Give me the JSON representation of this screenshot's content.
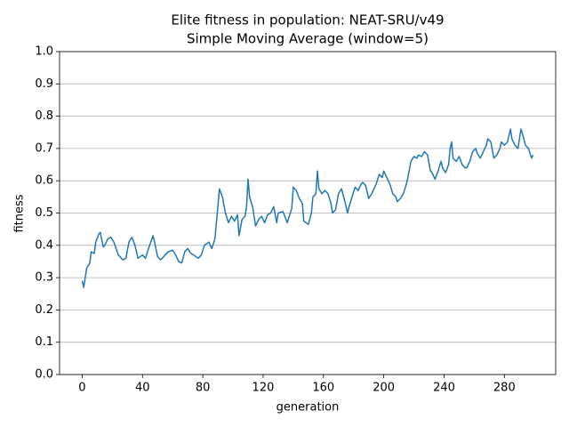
{
  "chart_data": {
    "type": "line",
    "title": "Elite fitness in population: NEAT-SRU/v49",
    "subtitle": "Simple Moving Average (window=5)",
    "x_label": "generation",
    "y_label": "fitness",
    "xlim": [
      -15,
      314
    ],
    "ylim": [
      0,
      1
    ],
    "xticks": [
      0,
      40,
      80,
      120,
      160,
      200,
      240,
      280
    ],
    "yticks": [
      {
        "value": 0,
        "label": "0.0"
      },
      0.1,
      0.2,
      0.3,
      0.4,
      0.5,
      0.6,
      0.7,
      0.8,
      0.9,
      {
        "value": 1,
        "label": "1.0"
      }
    ],
    "grid": "y",
    "x": [
      0,
      1,
      3,
      5,
      6,
      8,
      9,
      11,
      12,
      14,
      15,
      17,
      19,
      21,
      24,
      27,
      29,
      31,
      33,
      35,
      37,
      40,
      42,
      44,
      47,
      48,
      50,
      52,
      55,
      57,
      60,
      62,
      64,
      66,
      68,
      70,
      72,
      74,
      77,
      79,
      81,
      84,
      86,
      88,
      90,
      91,
      93,
      95,
      97,
      99,
      101,
      103,
      104,
      106,
      108,
      109,
      110,
      111,
      113,
      115,
      117,
      119,
      121,
      123,
      125,
      127,
      129,
      130,
      133,
      134,
      136,
      139,
      140,
      142,
      144,
      146,
      147,
      150,
      152,
      153,
      155,
      156,
      157,
      159,
      161,
      163,
      165,
      166,
      168,
      170,
      172,
      174,
      176,
      177,
      179,
      181,
      183,
      185,
      186,
      188,
      190,
      192,
      193,
      195,
      197,
      199,
      200,
      202,
      204,
      206,
      208,
      209,
      211,
      213,
      215,
      216,
      218,
      220,
      222,
      223,
      225,
      227,
      229,
      231,
      232,
      234,
      236,
      238,
      239,
      241,
      243,
      244,
      245,
      246,
      248,
      250,
      252,
      254,
      255,
      257,
      259,
      261,
      262,
      264,
      266,
      268,
      269,
      271,
      273,
      275,
      277,
      278,
      280,
      282,
      284,
      285,
      287,
      289,
      291,
      292,
      294,
      296,
      298,
      299
    ],
    "series": [
      {
        "name": "fitness",
        "color": "#1f77b4",
        "values": [
          0.29,
          0.27,
          0.33,
          0.345,
          0.38,
          0.375,
          0.41,
          0.435,
          0.44,
          0.395,
          0.4,
          0.42,
          0.425,
          0.41,
          0.37,
          0.355,
          0.36,
          0.41,
          0.425,
          0.4,
          0.36,
          0.37,
          0.36,
          0.39,
          0.43,
          0.41,
          0.365,
          0.355,
          0.37,
          0.38,
          0.385,
          0.37,
          0.35,
          0.345,
          0.38,
          0.39,
          0.375,
          0.37,
          0.36,
          0.37,
          0.4,
          0.41,
          0.39,
          0.42,
          0.52,
          0.575,
          0.55,
          0.5,
          0.47,
          0.49,
          0.475,
          0.495,
          0.43,
          0.48,
          0.49,
          0.52,
          0.605,
          0.55,
          0.52,
          0.46,
          0.48,
          0.49,
          0.47,
          0.495,
          0.5,
          0.52,
          0.47,
          0.5,
          0.505,
          0.495,
          0.47,
          0.515,
          0.58,
          0.57,
          0.545,
          0.53,
          0.475,
          0.465,
          0.5,
          0.55,
          0.56,
          0.63,
          0.575,
          0.56,
          0.57,
          0.56,
          0.53,
          0.5,
          0.51,
          0.56,
          0.575,
          0.54,
          0.5,
          0.52,
          0.55,
          0.58,
          0.57,
          0.59,
          0.595,
          0.585,
          0.545,
          0.56,
          0.57,
          0.59,
          0.62,
          0.61,
          0.63,
          0.61,
          0.59,
          0.56,
          0.55,
          0.535,
          0.545,
          0.56,
          0.59,
          0.61,
          0.66,
          0.675,
          0.67,
          0.68,
          0.675,
          0.69,
          0.68,
          0.63,
          0.625,
          0.605,
          0.63,
          0.66,
          0.64,
          0.625,
          0.65,
          0.7,
          0.72,
          0.67,
          0.66,
          0.675,
          0.65,
          0.64,
          0.64,
          0.66,
          0.69,
          0.7,
          0.685,
          0.67,
          0.69,
          0.71,
          0.73,
          0.72,
          0.67,
          0.68,
          0.7,
          0.72,
          0.71,
          0.72,
          0.76,
          0.73,
          0.71,
          0.7,
          0.76,
          0.745,
          0.71,
          0.7,
          0.67,
          0.68
        ]
      }
    ]
  }
}
